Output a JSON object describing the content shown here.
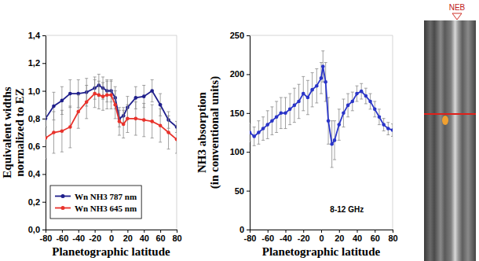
{
  "chart_data": [
    {
      "type": "line",
      "x_label": "Planetographic latitude",
      "y_label": [
        "Equivalent widths",
        "normalized to EZ"
      ],
      "x": [
        -80,
        -70,
        -60,
        -50,
        -40,
        -30,
        -20,
        -15,
        -10,
        -5,
        0,
        5,
        10,
        15,
        20,
        30,
        40,
        50,
        60,
        70,
        80
      ],
      "xlim": [
        -80,
        80
      ],
      "xticks": [
        -80,
        -60,
        -40,
        -20,
        0,
        20,
        40,
        60,
        80
      ],
      "ylim": [
        0,
        1.4
      ],
      "yticks": [
        {
          "value": 0,
          "label": "0,0"
        },
        {
          "value": 0.2,
          "label": "0,2"
        },
        {
          "value": 0.4,
          "label": "0,4"
        },
        {
          "value": 0.6,
          "label": "0,6"
        },
        {
          "value": 0.8,
          "label": "0,8"
        },
        {
          "value": 1.0,
          "label": "1,0"
        },
        {
          "value": 1.2,
          "label": "1,2"
        },
        {
          "value": 1.4,
          "label": "1,4"
        }
      ],
      "grid": false,
      "legend": "lower left",
      "series": [
        {
          "name": "Wn NH3 787 nm",
          "color": "#1f1f8c",
          "marker": "circle",
          "values": [
            0.8,
            0.89,
            0.93,
            0.98,
            0.98,
            0.99,
            1.02,
            1.04,
            1.02,
            1.0,
            1.0,
            0.95,
            0.8,
            0.82,
            0.88,
            0.95,
            0.96,
            1.0,
            0.9,
            0.79,
            0.74
          ],
          "errors": [
            0.06,
            0.1,
            0.1,
            0.1,
            0.1,
            0.1,
            0.08,
            0.08,
            0.08,
            0.08,
            0.08,
            0.08,
            0.06,
            0.06,
            0.08,
            0.08,
            0.08,
            0.08,
            0.08,
            0.06,
            0.04
          ]
        },
        {
          "name": "Wn NH3 645 nm",
          "color": "#e8322b",
          "marker": "circle",
          "values": [
            0.66,
            0.7,
            0.71,
            0.74,
            0.85,
            0.92,
            0.98,
            0.97,
            0.96,
            0.97,
            0.97,
            0.9,
            0.78,
            0.76,
            0.8,
            0.8,
            0.79,
            0.78,
            0.75,
            0.7,
            0.65
          ],
          "errors": [
            0.15,
            0.15,
            0.15,
            0.15,
            0.12,
            0.12,
            0.1,
            0.1,
            0.1,
            0.1,
            0.1,
            0.1,
            0.1,
            0.1,
            0.1,
            0.12,
            0.12,
            0.12,
            0.12,
            0.12,
            0.1
          ]
        }
      ]
    },
    {
      "type": "line",
      "x_label": "Planetographic latitude",
      "y_label": [
        "NH3 absorption",
        "(in conventional units)"
      ],
      "annotation": "8-12 GHz",
      "x": [
        -80,
        -75,
        -70,
        -65,
        -60,
        -55,
        -50,
        -45,
        -40,
        -35,
        -30,
        -25,
        -20,
        -15,
        -10,
        -5,
        0,
        2,
        5,
        8,
        12,
        15,
        20,
        25,
        30,
        35,
        40,
        45,
        50,
        55,
        60,
        65,
        70,
        75,
        80
      ],
      "xlim": [
        -80,
        80
      ],
      "xticks": [
        -80,
        -60,
        -40,
        -20,
        0,
        20,
        40,
        60,
        80
      ],
      "ylim": [
        0,
        250
      ],
      "yticks": [
        0,
        50,
        100,
        150,
        200,
        250
      ],
      "grid": false,
      "series": [
        {
          "color": "#2a35c8",
          "marker": "circle",
          "values": [
            125,
            120,
            125,
            130,
            135,
            140,
            145,
            150,
            150,
            155,
            160,
            165,
            175,
            170,
            180,
            185,
            195,
            210,
            190,
            140,
            110,
            115,
            135,
            150,
            160,
            165,
            175,
            178,
            172,
            165,
            155,
            145,
            135,
            130,
            128
          ],
          "errors": [
            12,
            12,
            15,
            15,
            18,
            18,
            20,
            20,
            20,
            20,
            22,
            22,
            22,
            22,
            22,
            22,
            20,
            20,
            25,
            30,
            30,
            25,
            20,
            18,
            15,
            12,
            10,
            10,
            10,
            10,
            10,
            10,
            8,
            8,
            8
          ]
        }
      ]
    }
  ],
  "image": {
    "label": "NEB"
  }
}
